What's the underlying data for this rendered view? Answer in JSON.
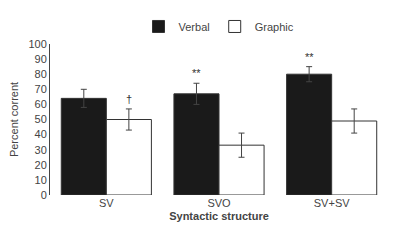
{
  "chart_data": {
    "type": "bar",
    "categories": [
      "SV",
      "SVO",
      "SV+SV"
    ],
    "series": [
      {
        "name": "Verbal",
        "color": "#1a1a1a",
        "values": [
          64,
          67,
          80
        ],
        "errors": [
          6,
          7,
          5
        ]
      },
      {
        "name": "Graphic",
        "color": "#ffffff",
        "values": [
          50,
          33,
          49
        ],
        "errors": [
          7,
          8,
          8
        ]
      }
    ],
    "xlabel": "Syntactic structure",
    "ylabel": "Percent corrent",
    "ylim": [
      0,
      100
    ],
    "yticks": [
      0,
      10,
      20,
      30,
      40,
      50,
      60,
      70,
      80,
      90,
      100
    ],
    "grid": false,
    "legend": "top",
    "annotations": [
      {
        "text": "†",
        "category": "SV",
        "series": "Graphic"
      },
      {
        "text": "**",
        "category": "SVO",
        "series": "Verbal"
      },
      {
        "text": "**",
        "category": "SV+SV",
        "series": "Verbal"
      }
    ]
  }
}
